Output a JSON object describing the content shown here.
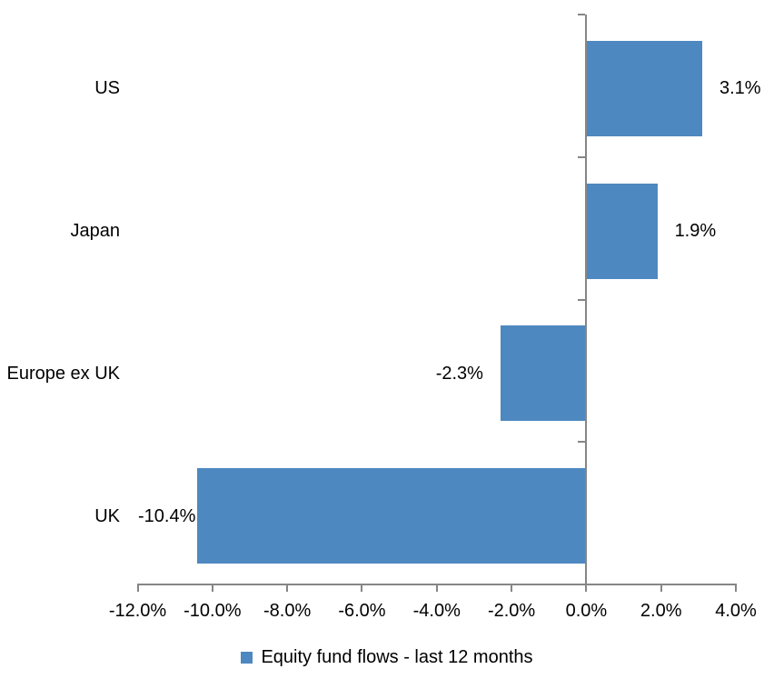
{
  "chart_data": {
    "type": "bar",
    "orientation": "horizontal",
    "title": "",
    "legend": "Equity fund flows - last 12 months",
    "legend_position": "bottom",
    "categories": [
      "US",
      "Japan",
      "Europe ex UK",
      "UK"
    ],
    "series": [
      {
        "name": "Equity fund flows - last 12 months",
        "values": [
          3.1,
          1.9,
          -2.3,
          -10.4
        ],
        "labels": [
          "3.1%",
          "1.9%",
          "-2.3%",
          "-10.4%"
        ],
        "color": "#4E88C0"
      }
    ],
    "xlim": [
      -12,
      4
    ],
    "x_tick_values": [
      -12,
      -10,
      -8,
      -6,
      -4,
      -2,
      0,
      2,
      4
    ],
    "x_tick_labels": [
      "-12.0%",
      "-10.0%",
      "-8.0%",
      "-6.0%",
      "-4.0%",
      "-2.0%",
      "0.0%",
      "2.0%",
      "4.0%"
    ],
    "grid": false,
    "axis_color": "#868686",
    "text_color": "#000000",
    "background": "#FFFFFF"
  }
}
